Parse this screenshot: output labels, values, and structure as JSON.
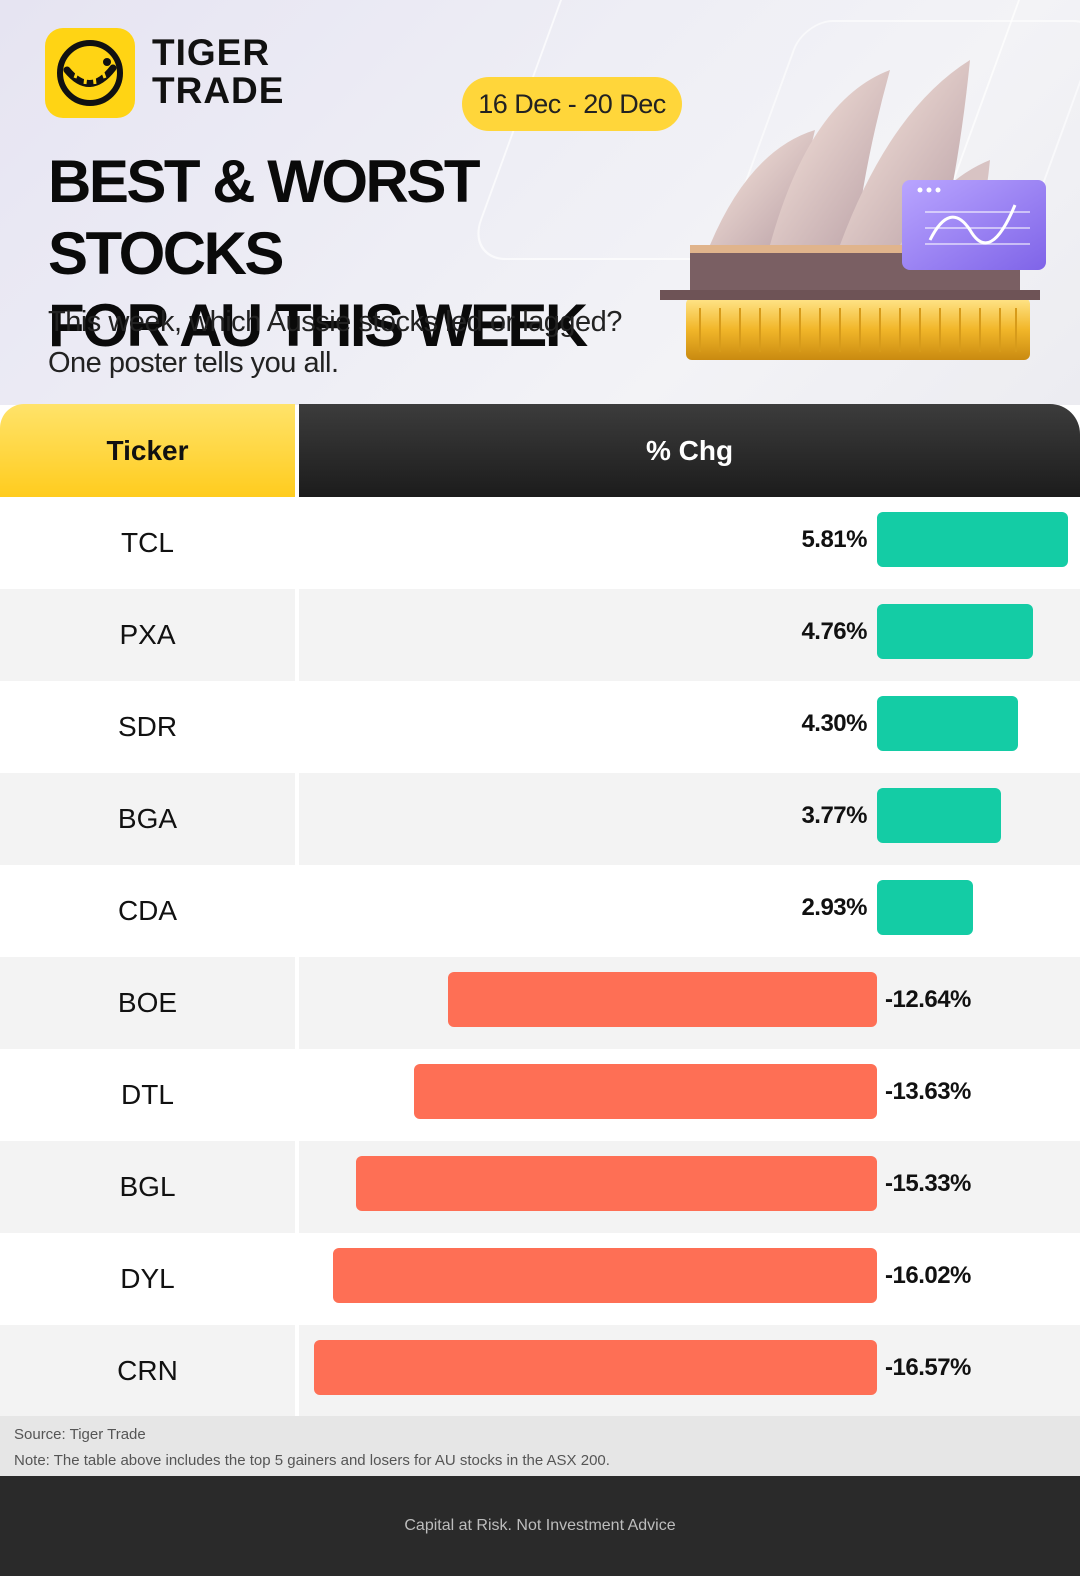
{
  "brand": {
    "name_line1": "TIGER",
    "name_line2": "TRADE",
    "accent": "#ffd414",
    "icon": "tiger-logo-icon"
  },
  "header": {
    "date_range": "16 Dec - 20 Dec",
    "title_line1": "BEST & WORST STOCKS",
    "title_line2": "FOR AU THIS WEEK",
    "subtitle_line1": "This week, which Aussie stocks led or  lagged?",
    "subtitle_line2": "One poster tells you all.",
    "illustration": "sydney-opera-house-icon"
  },
  "chart_data": {
    "type": "bar",
    "orientation": "horizontal",
    "column_headers": [
      "Ticker",
      "% Chg"
    ],
    "categories": [
      "TCL",
      "PXA",
      "SDR",
      "BGA",
      "CDA",
      "BOE",
      "DTL",
      "BGL",
      "DYL",
      "CRN"
    ],
    "values": [
      5.81,
      4.76,
      4.3,
      3.77,
      2.93,
      -12.64,
      -13.63,
      -15.33,
      -16.02,
      -16.57
    ],
    "labels": [
      "5.81%",
      "4.76%",
      "4.30%",
      "3.77%",
      "2.93%",
      "-12.64%",
      "-13.63%",
      "-15.33%",
      "-16.02%",
      "-16.57%"
    ],
    "colors": {
      "positive": "#14cca5",
      "negative": "#fe6f55"
    },
    "scales": {
      "positive_max": 5.81,
      "negative_max": 16.57
    }
  },
  "notes": {
    "source": "Source: Tiger Trade",
    "note": "Note: The table above includes the top 5 gainers and losers for AU stocks in the ASX 200."
  },
  "footer": {
    "disclaimer": "Capital at Risk. Not Investment Advice"
  }
}
